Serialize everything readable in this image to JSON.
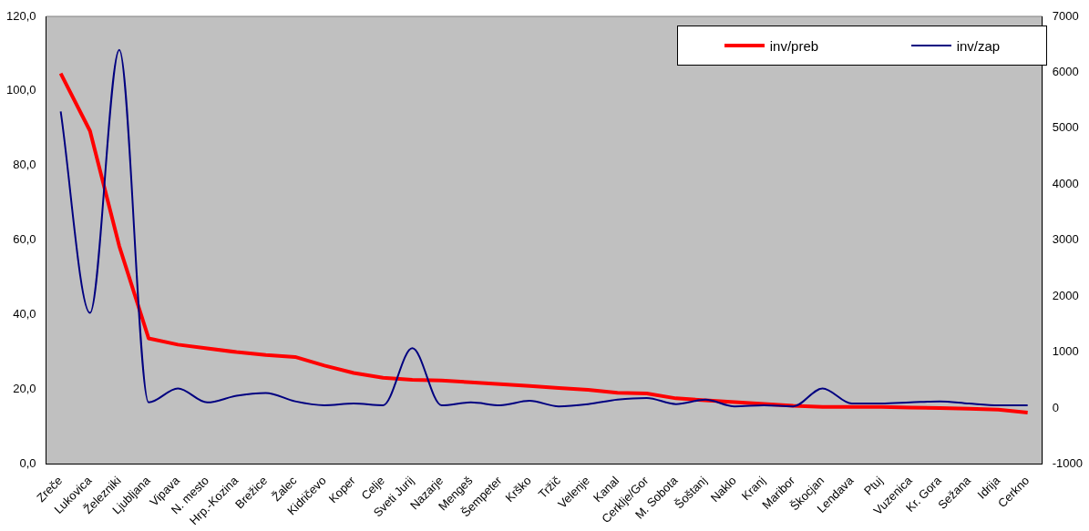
{
  "chart_data": {
    "type": "line",
    "categories": [
      "Zreče",
      "Lukovica",
      "Železniki",
      "Ljubljana",
      "Vipava",
      "N. mesto",
      "Hrp.-Kozina",
      "Brežice",
      "Žalec",
      "Kidričevo",
      "Koper",
      "Celje",
      "Sveti Jurij",
      "Nazarje",
      "Mengeš",
      "Šempeter",
      "Krško",
      "Tržič",
      "Velenje",
      "Kanal",
      "Cerklje/Gor",
      "M. Sobota",
      "Šoštanj",
      "Naklo",
      "Kranj",
      "Maribor",
      "Škocjan",
      "Lendava",
      "Ptuj",
      "Vuzenica",
      "Kr. Gora",
      "Sežana",
      "Idrija",
      "Cerkno"
    ],
    "series": [
      {
        "name": "inv/preb",
        "color": "#ff0000",
        "values": [
          104.7,
          89.3,
          58.4,
          33.7,
          32.0,
          31.0,
          30.0,
          29.2,
          28.7,
          26.4,
          24.4,
          23.1,
          22.6,
          22.4,
          21.9,
          21.4,
          20.9,
          20.4,
          19.9,
          19.1,
          18.9,
          17.6,
          17.1,
          16.6,
          16.1,
          15.6,
          15.3,
          15.3,
          15.3,
          15.1,
          15.0,
          14.8,
          14.6,
          13.8
        ]
      },
      {
        "name": "inv/zap",
        "color": "#000080",
        "axis": "y2",
        "values": [
          5300,
          1700,
          6400,
          100,
          350,
          100,
          220,
          270,
          120,
          50,
          80,
          50,
          1070,
          50,
          100,
          50,
          130,
          30,
          70,
          150,
          180,
          70,
          150,
          30,
          50,
          30,
          350,
          80,
          80,
          100,
          120,
          80,
          50,
          50
        ]
      }
    ],
    "ylim": [
      0,
      120
    ],
    "yticks": [
      {
        "value": 0,
        "label": "0,0"
      },
      {
        "value": 20,
        "label": "20,0"
      },
      {
        "value": 40,
        "label": "40,0"
      },
      {
        "value": 60,
        "label": "60,0"
      },
      {
        "value": 80,
        "label": "80,0"
      },
      {
        "value": 100,
        "label": "100,0"
      },
      {
        "value": 120,
        "label": "120,0"
      }
    ],
    "y2lim": [
      -1000,
      7000
    ],
    "y2ticks": [
      -1000,
      0,
      1000,
      2000,
      3000,
      4000,
      5000,
      6000,
      7000
    ],
    "grid": false,
    "legend": "top right",
    "marker": "none",
    "line_style": "solid"
  }
}
